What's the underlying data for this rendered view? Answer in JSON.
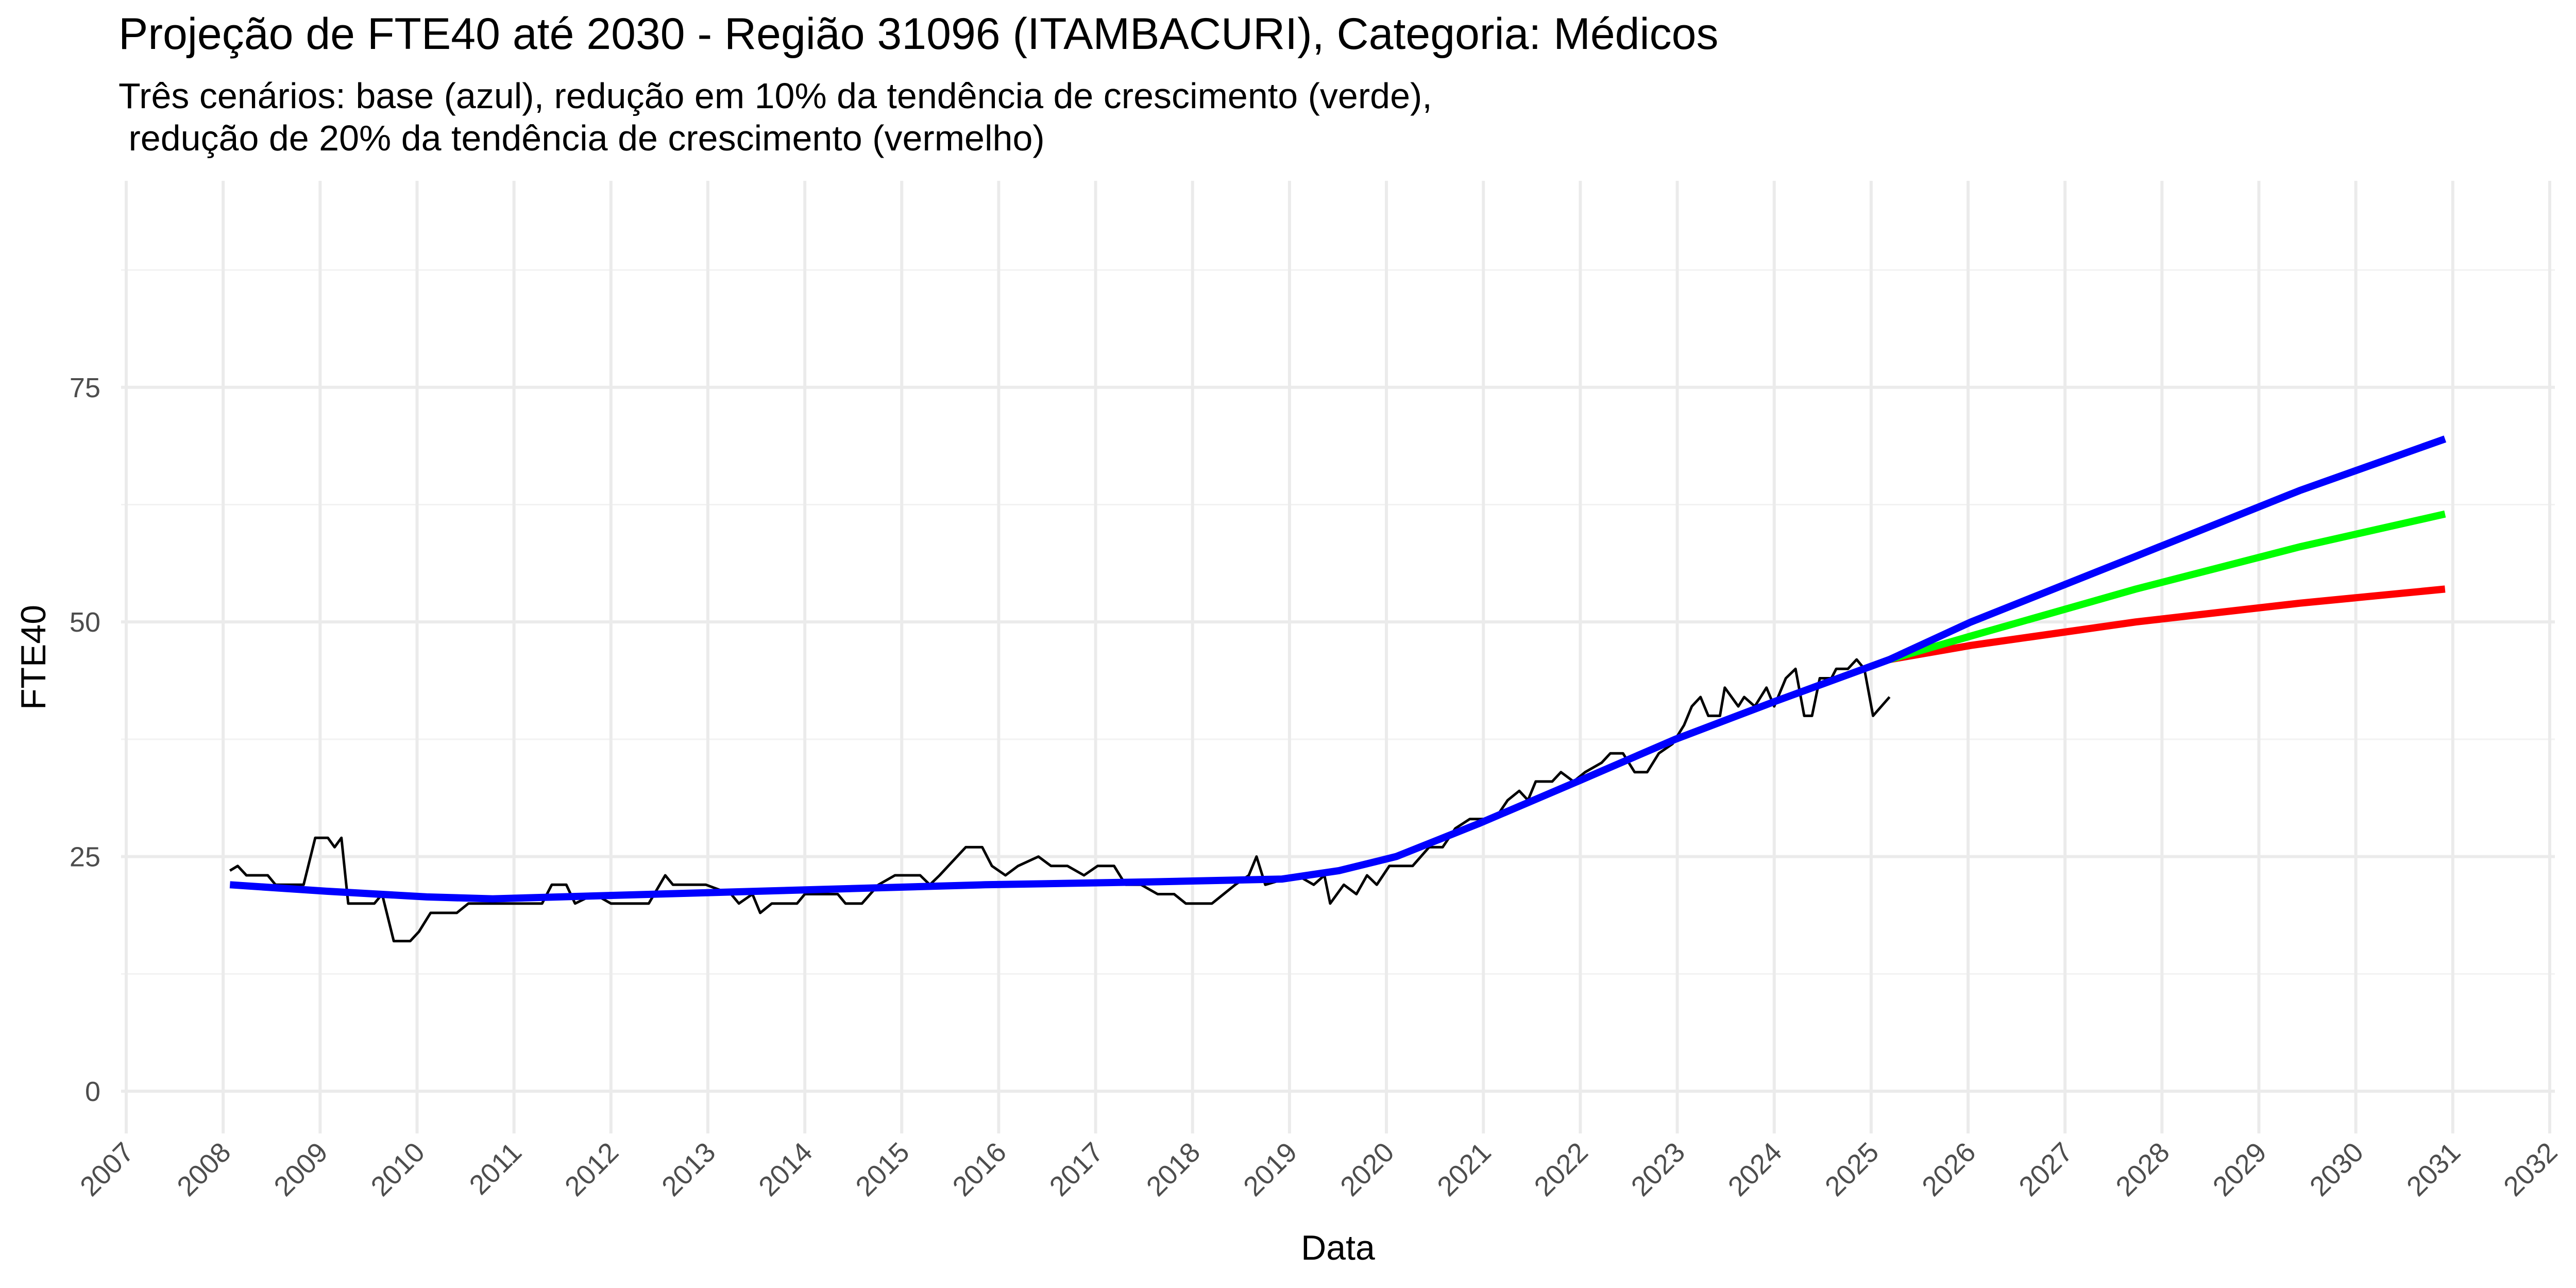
{
  "chart_data": {
    "type": "line",
    "title": "Projeção de FTE40 até 2030 - Região 31096 (ITAMBACURI), Categoria: Médicos",
    "subtitle": [
      "Três cenários: base (azul), redução em 10% da tendência de crescimento (verde),",
      " redução de 20% da tendência de crescimento (vermelho)"
    ],
    "x_label": "Data",
    "y_label": "FTE40",
    "xlim": [
      2007,
      2032
    ],
    "xticks": [
      2007,
      2008,
      2009,
      2010,
      2011,
      2012,
      2013,
      2014,
      2015,
      2016,
      2017,
      2018,
      2019,
      2020,
      2021,
      2022,
      2023,
      2024,
      2025,
      2026,
      2027,
      2028,
      2029,
      2030,
      2031,
      2032
    ],
    "ylim": [
      -4.5,
      97
    ],
    "yticks": [
      0,
      25,
      50,
      75
    ],
    "yminor": [
      12.5,
      37.5,
      62.5,
      87.5
    ],
    "grid": true,
    "series": [
      {
        "color": "#000000",
        "x": [
          2008.07,
          2008.15,
          2008.24,
          2008.46,
          2008.54,
          2008.83,
          2008.95,
          2009.08,
          2009.15,
          2009.22,
          2009.29,
          2009.56,
          2009.64,
          2009.76,
          2009.93,
          2010.02,
          2010.14,
          2010.41,
          2010.53,
          2011.29,
          2011.39,
          2011.54,
          2011.63,
          2011.83,
          2012.0,
          2012.39,
          2012.56,
          2012.64,
          2012.98,
          2013.24,
          2013.32,
          2013.46,
          2013.54,
          2013.66,
          2013.92,
          2014.0,
          2014.34,
          2014.42,
          2014.59,
          2014.76,
          2014.93,
          2015.19,
          2015.29,
          2015.39,
          2015.66,
          2015.83,
          2015.93,
          2016.07,
          2016.2,
          2016.41,
          2016.54,
          2016.71,
          2016.88,
          2017.02,
          2017.19,
          2017.31,
          2017.47,
          2017.64,
          2017.81,
          2017.93,
          2018.2,
          2018.32,
          2018.44,
          2018.58,
          2018.66,
          2018.75,
          2019.08,
          2019.25,
          2019.36,
          2019.42,
          2019.56,
          2019.69,
          2019.8,
          2019.9,
          2020.03,
          2020.27,
          2020.44,
          2020.58,
          2020.71,
          2020.86,
          2021.12,
          2021.25,
          2021.37,
          2021.46,
          2021.54,
          2021.71,
          2021.8,
          2021.93,
          2022.05,
          2022.22,
          2022.31,
          2022.44,
          2022.56,
          2022.69,
          2022.81,
          2022.95,
          2023.07,
          2023.15,
          2023.24,
          2023.32,
          2023.44,
          2023.49,
          2023.63,
          2023.69,
          2023.8,
          2023.92,
          2024.0,
          2024.12,
          2024.22,
          2024.31,
          2024.39,
          2024.47,
          2024.59,
          2024.64,
          2024.76,
          2024.85,
          2024.93,
          2025.02,
          2025.19
        ],
        "values": [
          23.5,
          24,
          23,
          23,
          22,
          22,
          27,
          27,
          26,
          27,
          20,
          20,
          21,
          16,
          16,
          17,
          19,
          19,
          20,
          20,
          22,
          22,
          20,
          21,
          20,
          20,
          23,
          22,
          22,
          21,
          20,
          21,
          19,
          20,
          20,
          21,
          21,
          20,
          20,
          22,
          23,
          23,
          22,
          23,
          26,
          26,
          24,
          23,
          24,
          25,
          24,
          24,
          23,
          24,
          24,
          22,
          22,
          21,
          21,
          20,
          20,
          21,
          22,
          23,
          25,
          22,
          23,
          22,
          23,
          20,
          22,
          21,
          23,
          22,
          24,
          24,
          26,
          26,
          28,
          29,
          29,
          31,
          32,
          31,
          33,
          33,
          34,
          33,
          34,
          35,
          36,
          36,
          34,
          34,
          36,
          37,
          39,
          41,
          42,
          40,
          40,
          43,
          41,
          42,
          41,
          43,
          41,
          44,
          45,
          40,
          40,
          44,
          44,
          45,
          45,
          46,
          45,
          40,
          42
        ]
      },
      {
        "color": "#ff0000",
        "x": [
          2025.19,
          2026.03,
          2027.73,
          2029.42,
          2030.92
        ],
        "values": [
          46,
          47.5,
          50,
          52,
          53.5
        ]
      },
      {
        "color": "#00ff00",
        "x": [
          2025.19,
          2026.03,
          2027.73,
          2029.42,
          2030.92
        ],
        "values": [
          46,
          48.5,
          53.5,
          58,
          61.5
        ]
      },
      {
        "color": "#0000ff",
        "x": [
          2008.07,
          2009.08,
          2010.1,
          2010.78,
          2012.47,
          2014.17,
          2015.86,
          2017.56,
          2018.92,
          2019.51,
          2020.1,
          2020.95,
          2021.97,
          2022.98,
          2024.0,
          2025.19,
          2026.03,
          2027.73,
          2029.42,
          2030.92
        ],
        "values": [
          22,
          21.3,
          20.7,
          20.5,
          21,
          21.5,
          22,
          22.3,
          22.6,
          23.5,
          25,
          28.5,
          33,
          37.5,
          41.5,
          46,
          50,
          57,
          64,
          69.5
        ]
      }
    ]
  }
}
